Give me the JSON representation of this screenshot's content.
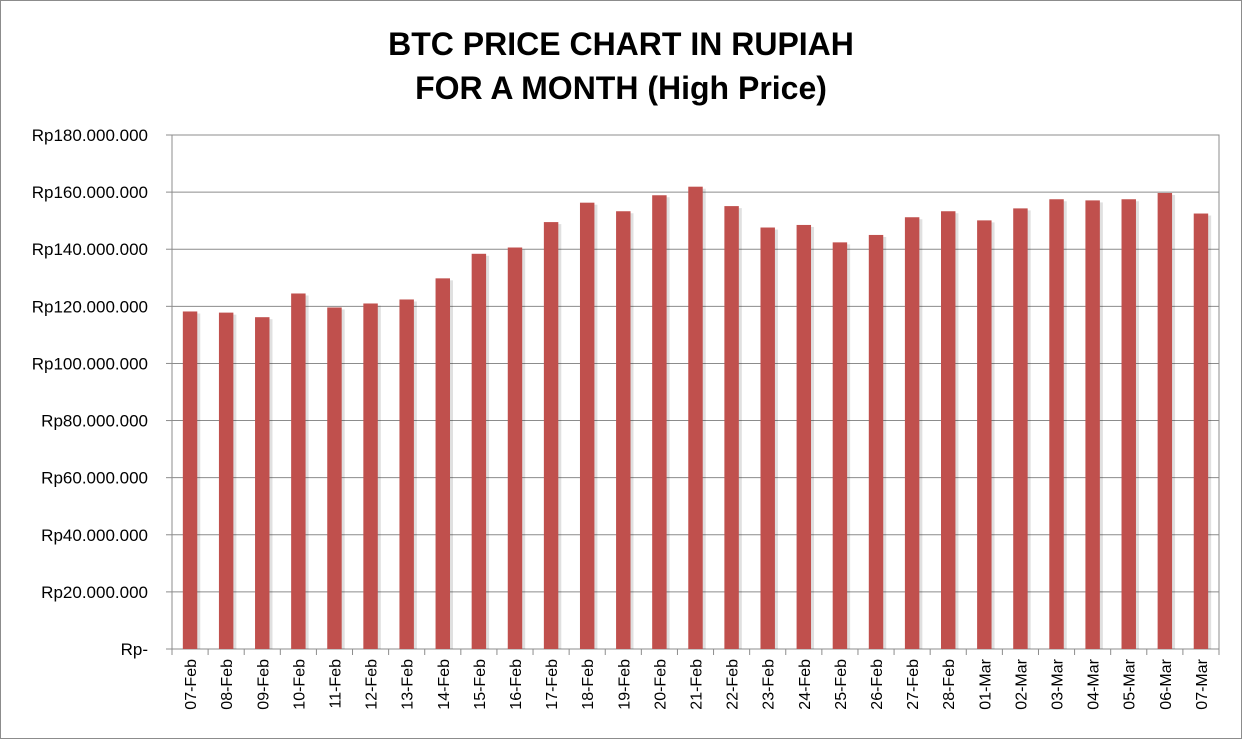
{
  "chart_data": {
    "type": "bar",
    "title_lines": [
      "BTC PRICE CHART IN RUPIAH",
      "FOR A MONTH (High Price)"
    ],
    "categories": [
      "07-Feb",
      "08-Feb",
      "09-Feb",
      "10-Feb",
      "11-Feb",
      "12-Feb",
      "13-Feb",
      "14-Feb",
      "15-Feb",
      "16-Feb",
      "17-Feb",
      "18-Feb",
      "19-Feb",
      "20-Feb",
      "21-Feb",
      "22-Feb",
      "23-Feb",
      "24-Feb",
      "25-Feb",
      "26-Feb",
      "27-Feb",
      "28-Feb",
      "01-Mar",
      "02-Mar",
      "03-Mar",
      "04-Mar",
      "05-Mar",
      "06-Mar",
      "07-Mar"
    ],
    "values": [
      118200000,
      117800000,
      116200000,
      124500000,
      119600000,
      121000000,
      122400000,
      129800000,
      138400000,
      140600000,
      149500000,
      156300000,
      153300000,
      158900000,
      161900000,
      155100000,
      147600000,
      148500000,
      142400000,
      145000000,
      151200000,
      153300000,
      150100000,
      154300000,
      157500000,
      157100000,
      157500000,
      159700000,
      152500000
    ],
    "ylim": [
      0,
      180000000
    ],
    "y_ticks": [
      "Rp-",
      "Rp20.000.000",
      "Rp40.000.000",
      "Rp60.000.000",
      "Rp80.000.000",
      "Rp100.000.000",
      "Rp120.000.000",
      "Rp140.000.000",
      "Rp160.000.000",
      "Rp180.000.000"
    ],
    "xlabel": "",
    "ylabel": "",
    "grid": true,
    "legend": "none",
    "bar_color": "#c0504d"
  }
}
